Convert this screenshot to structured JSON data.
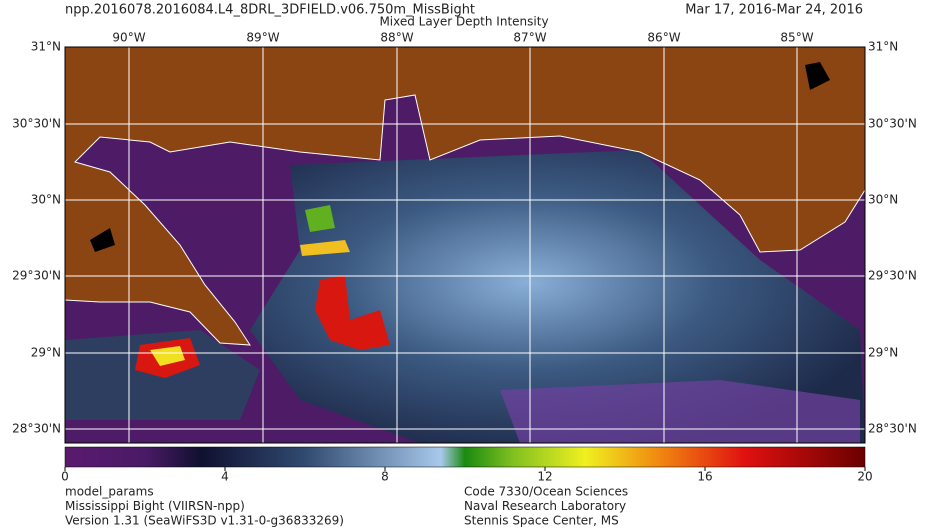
{
  "header": {
    "title": "npp.2016078.2016084.L4_8DRL_3DFIELD.v06.750m_MissBight",
    "date_range": "Mar 17, 2016-Mar 24, 2016",
    "subtitle": "Mixed Layer Depth Intensity"
  },
  "map": {
    "lon_labels": [
      "90°W",
      "89°W",
      "88°W",
      "87°W",
      "86°W",
      "85°W"
    ],
    "lat_labels": [
      "31°N",
      "30°30'N",
      "30°N",
      "29°30'N",
      "29°N",
      "28°30'N"
    ]
  },
  "colorbar": {
    "lim": [
      0,
      20
    ],
    "ticks": [
      0,
      4,
      8,
      12,
      16,
      20
    ]
  },
  "footer": {
    "left": [
      "model_params",
      "Mississippi Bight (VIIRSN-npp)",
      "Version 1.31 (SeaWiFS3D v1.31-0-g36833269)"
    ],
    "right": [
      "Code 7330/Ocean Sciences",
      "Naval Research Laboratory",
      "Stennis Space Center, MS"
    ]
  }
}
